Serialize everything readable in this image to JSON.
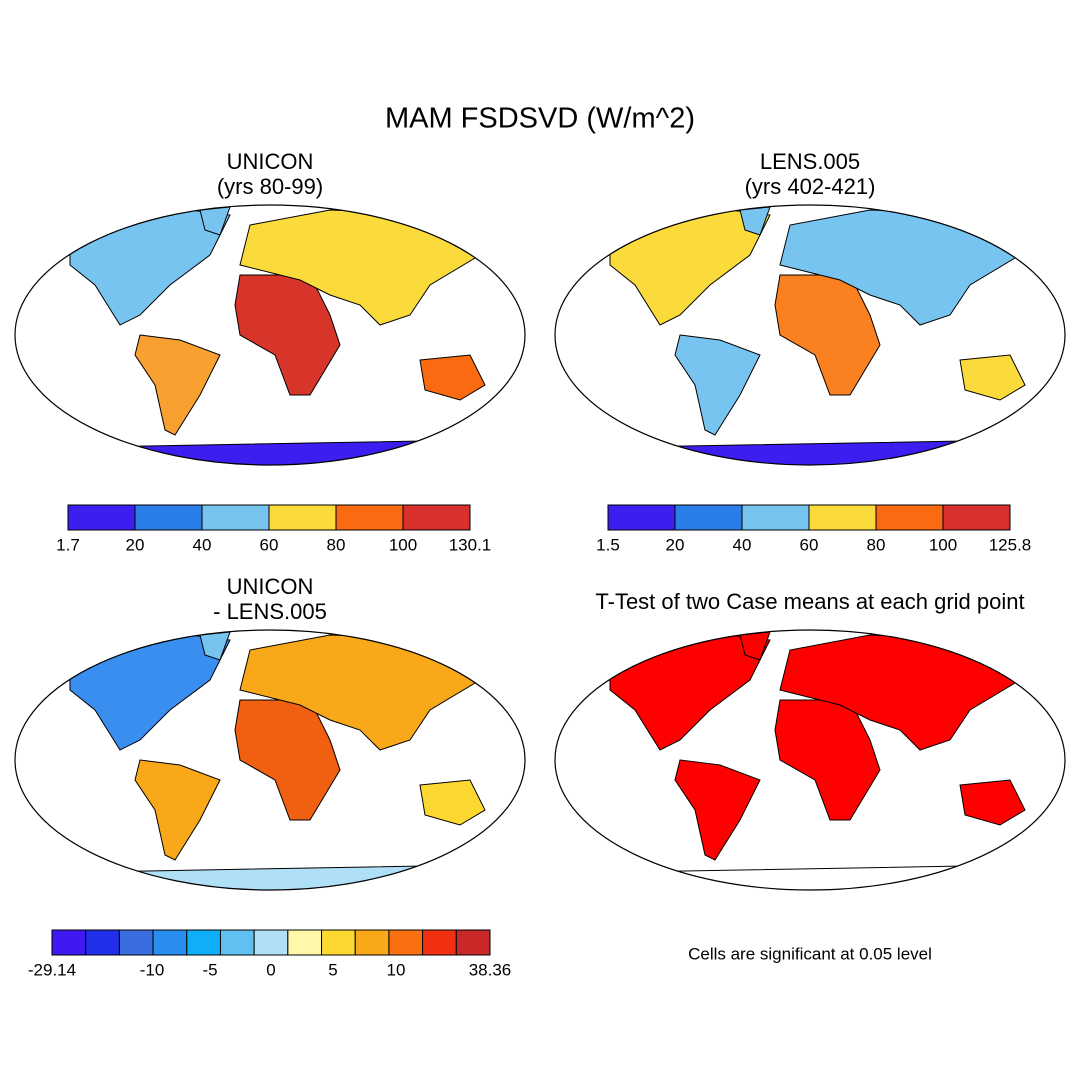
{
  "title": "MAM FSDSVD (W/m^2)",
  "panels": [
    {
      "title": [
        "UNICON",
        "(yrs 80-99)"
      ],
      "colorbar": {
        "colors": [
          "#3c1ef0",
          "#2a7ee8",
          "#78c4f0",
          "#fbdb3c",
          "#fa6a10",
          "#d8302c"
        ],
        "ticks": [
          1.7,
          20,
          40,
          60,
          80,
          100,
          130.1
        ]
      }
    },
    {
      "title": [
        "LENS.005",
        "(yrs 402-421)"
      ],
      "colorbar": {
        "colors": [
          "#3c1ef0",
          "#2a7ee8",
          "#78c4f0",
          "#fbdb3c",
          "#fa6a10",
          "#d8302c"
        ],
        "ticks": [
          1.5,
          20,
          40,
          60,
          80,
          100,
          125.8
        ]
      }
    },
    {
      "title": [
        "UNICON",
        "- LENS.005"
      ],
      "colorbar": {
        "colors": [
          "#4018f0",
          "#2030e8",
          "#3a6ee0",
          "#2a8ef0",
          "#10aef8",
          "#60c0f0",
          "#b0e0f8",
          "#fff8a8",
          "#fcd830",
          "#f8a818",
          "#f87010",
          "#f03010",
          "#c82828"
        ],
        "ticks": [
          -29.14,
          -10,
          -5,
          0,
          5,
          10,
          38.36
        ]
      }
    },
    {
      "title": [
        "T-Test of two Case means at each grid point"
      ],
      "note": "Cells are significant at 0.05 level"
    }
  ]
}
